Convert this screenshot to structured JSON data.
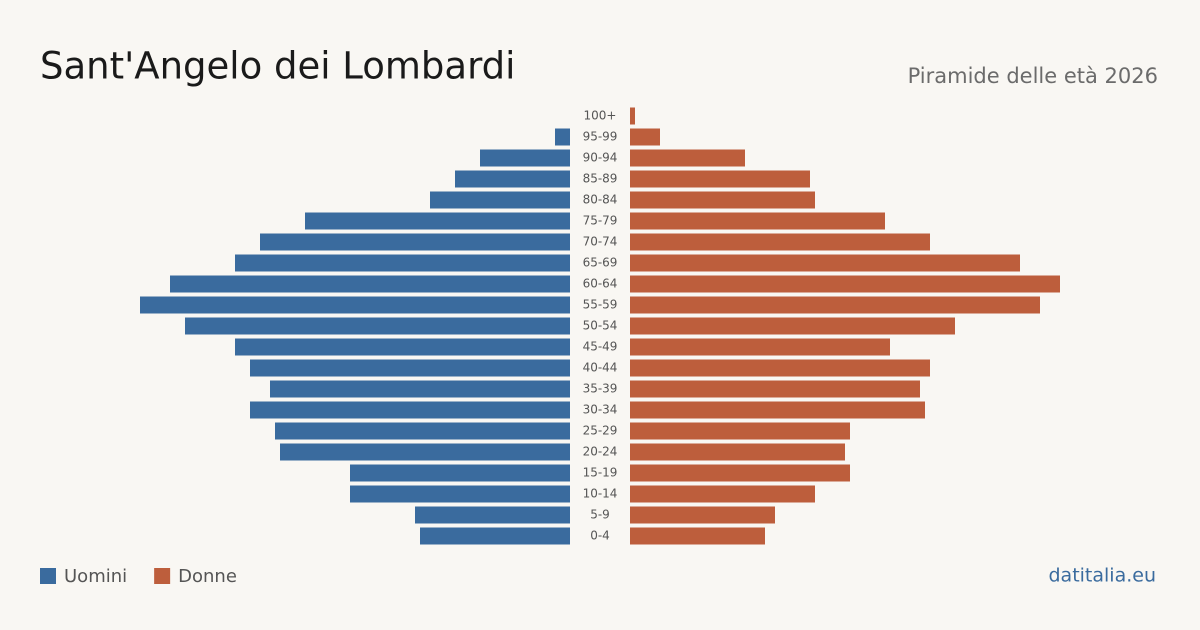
{
  "chart_data": {
    "type": "pyramid",
    "title": "Sant'Angelo dei Lombardi",
    "subtitle": "Piramide delle età 2026",
    "source": "datitalia.eu",
    "categories": [
      "100+",
      "95-99",
      "90-94",
      "85-89",
      "80-84",
      "75-79",
      "70-74",
      "65-69",
      "60-64",
      "55-59",
      "50-54",
      "45-49",
      "40-44",
      "35-39",
      "30-34",
      "25-29",
      "20-24",
      "15-19",
      "10-14",
      "5-9",
      "0-4"
    ],
    "series": [
      {
        "name": "Uomini",
        "color": "#3a6b9e",
        "values": [
          0,
          3,
          18,
          23,
          28,
          53,
          62,
          67,
          80,
          86,
          77,
          67,
          64,
          60,
          64,
          59,
          58,
          44,
          44,
          31,
          30
        ]
      },
      {
        "name": "Donne",
        "color": "#bd5e3c",
        "values": [
          1,
          6,
          23,
          36,
          37,
          51,
          60,
          78,
          86,
          82,
          65,
          52,
          60,
          58,
          59,
          44,
          43,
          44,
          37,
          29,
          27
        ]
      }
    ]
  }
}
